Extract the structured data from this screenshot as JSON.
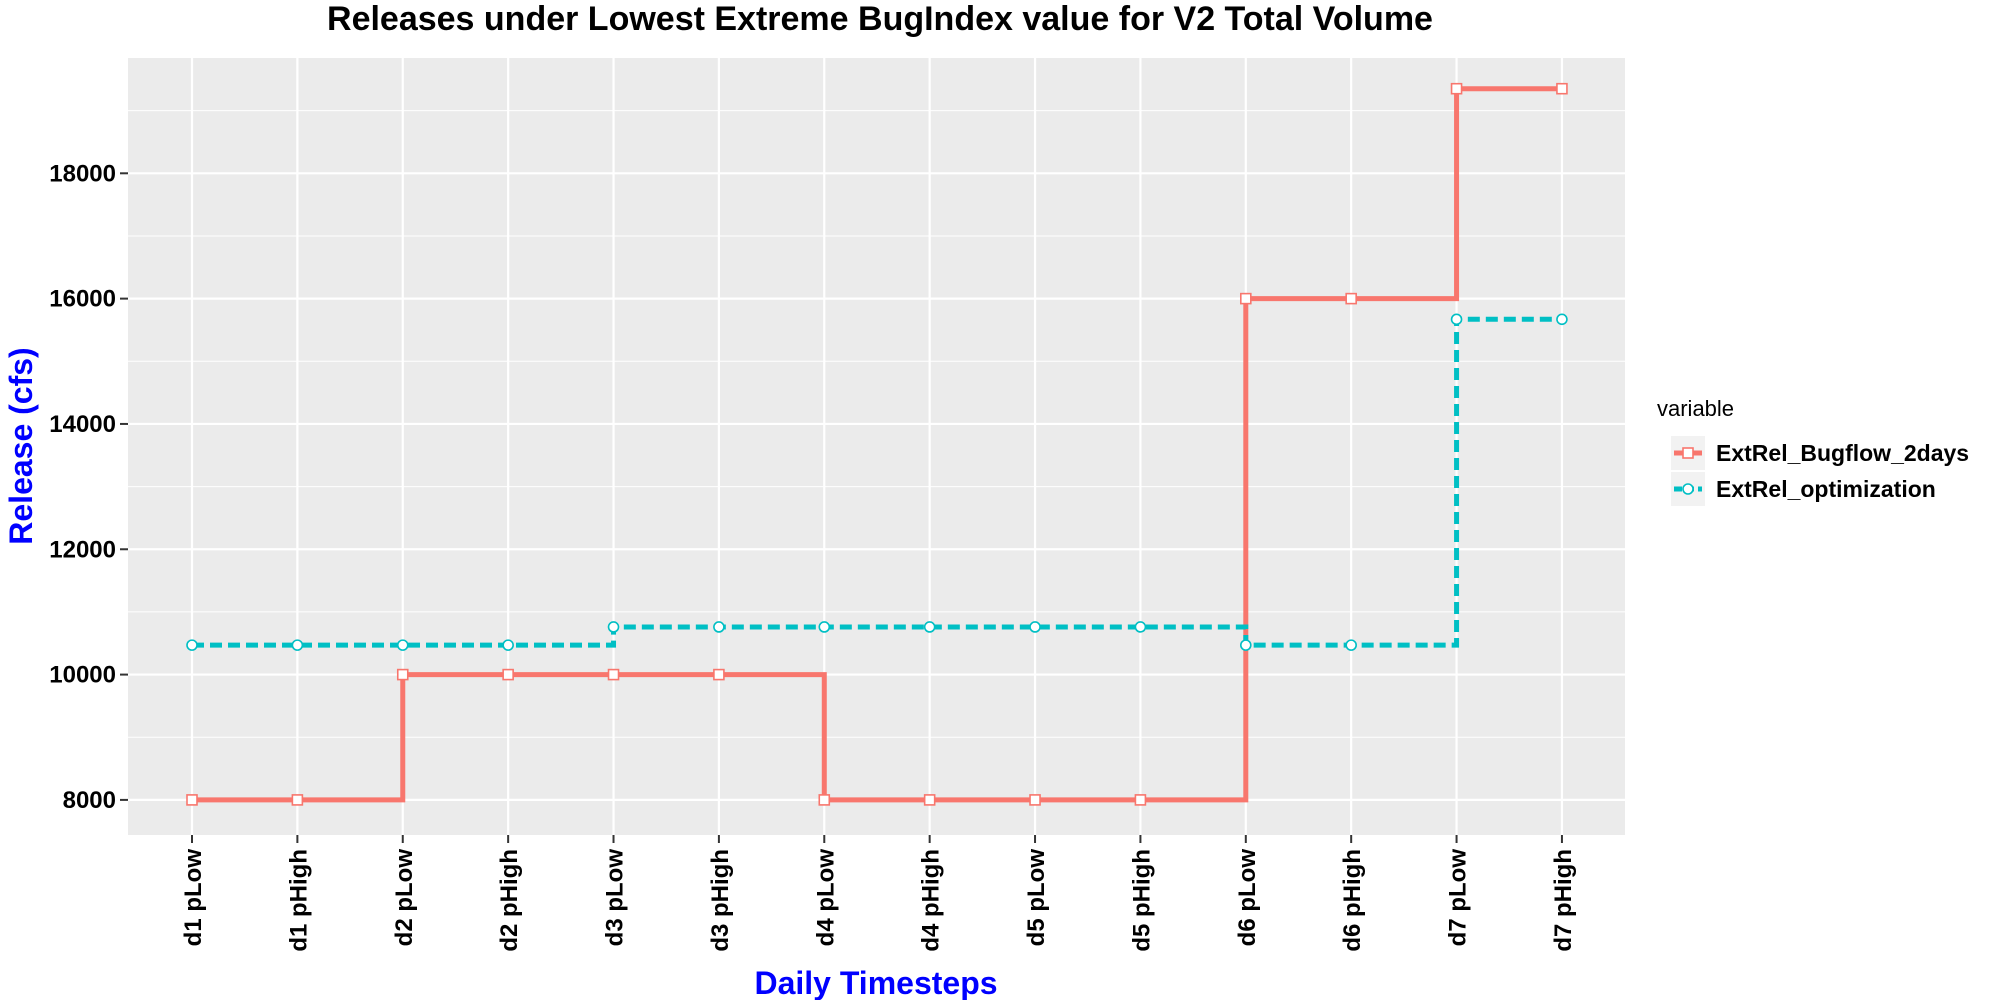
{
  "chart_data": {
    "type": "line",
    "step": true,
    "title": "Releases under Lowest Extreme BugIndex value for V2 Total Volume",
    "xlabel": "Daily Timesteps",
    "ylabel": "Release (cfs)",
    "categories": [
      "d1 pLow",
      "d1 pHigh",
      "d2 pLow",
      "d2 pHigh",
      "d3 pLow",
      "d3 pHigh",
      "d4 pLow",
      "d4 pHigh",
      "d5 pLow",
      "d5 pHigh",
      "d6 pLow",
      "d6 pHigh",
      "d7 pLow",
      "d7 pHigh"
    ],
    "ylim": [
      7440,
      19840
    ],
    "yticks": [
      8000,
      10000,
      12000,
      14000,
      16000,
      18000
    ],
    "grid": true,
    "legend": {
      "title": "variable",
      "position": "right"
    },
    "series": [
      {
        "name": "ExtRel_Bugflow_2days",
        "color": "#F8766D",
        "line_style": "solid",
        "marker": "square",
        "values": [
          8000,
          8000,
          10000,
          10000,
          10000,
          10000,
          8000,
          8000,
          8000,
          8000,
          16000,
          16000,
          19350,
          19350
        ]
      },
      {
        "name": "ExtRel_optimization",
        "color": "#00BFC4",
        "line_style": "dashed",
        "marker": "circle",
        "values": [
          10470,
          10470,
          10470,
          10470,
          10760,
          10760,
          10760,
          10760,
          10760,
          10760,
          10470,
          10470,
          15670,
          15670
        ]
      }
    ],
    "colors": {
      "panel_background": "#EBEBEB",
      "grid_major": "#FFFFFF",
      "axis_title": "#0000FF"
    }
  }
}
